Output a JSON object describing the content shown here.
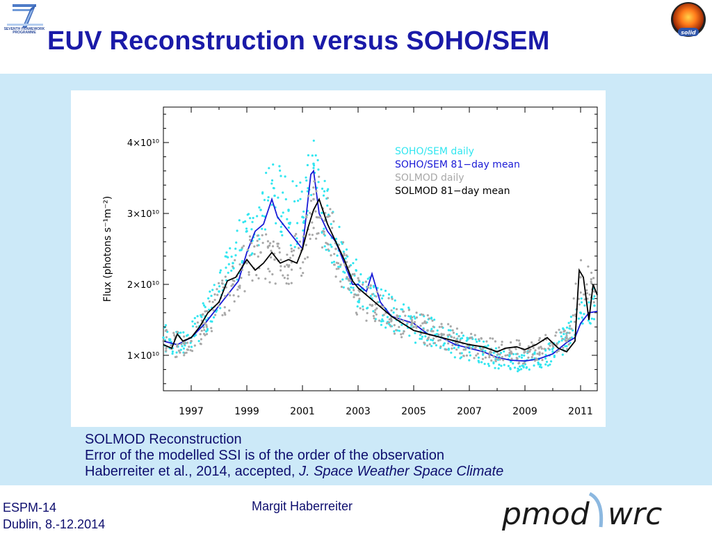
{
  "slide": {
    "title": "EUV Reconstruction versus SOHO/SEM",
    "fp7_logo_text": "SEVENTH FRAMEWORK PROGRAMME",
    "solid_logo_text": "solid",
    "caption": {
      "line1": "SOLMOD Reconstruction",
      "line2": "Error of the modelled SSI is of the order of the observation",
      "line3_plain": "Haberreiter et al., 2014, accepted, ",
      "line3_italic": "J. Space Weather Space Climate"
    },
    "footer": {
      "conference": "ESPM-14",
      "place_date": "Dublin, 8.-12.2014",
      "author": "Margit Haberreiter",
      "logo_left": "pmod",
      "logo_right": "wrc"
    },
    "colors": {
      "title": "#1a1aa8",
      "background": "#cce9f8",
      "soho_daily": "#33e6f0",
      "soho_mean": "#1a1ad6",
      "solmod_daily": "#a8a8a8",
      "solmod_mean": "#000000"
    }
  },
  "chart_data": {
    "type": "line",
    "title": "",
    "xlabel": "",
    "ylabel": "Flux (photons s⁻¹m⁻²)",
    "xlim": [
      1996.0,
      2011.6
    ],
    "ylim": [
      5000000000.0,
      45000000000.0
    ],
    "x_ticks": [
      1997,
      1999,
      2001,
      2003,
      2005,
      2007,
      2009,
      2011
    ],
    "y_ticks": [
      {
        "value": 10000000000.0,
        "label": "1×10¹⁰"
      },
      {
        "value": 20000000000.0,
        "label": "2×10¹⁰"
      },
      {
        "value": 30000000000.0,
        "label": "3×10¹⁰"
      },
      {
        "value": 40000000000.0,
        "label": "4×10¹⁰"
      }
    ],
    "legend_position": "top-right",
    "series": [
      {
        "name": "SOHO/SEM daily",
        "style": "dots",
        "color": "#33e6f0",
        "x": [
          1996.0,
          1996.5,
          1997.0,
          1997.5,
          1998.0,
          1998.5,
          1999.0,
          1999.5,
          2000.0,
          2000.5,
          2001.0,
          2001.4,
          2001.8,
          2002.2,
          2002.6,
          2003.0,
          2003.5,
          2004.0,
          2004.5,
          2005.0,
          2005.5,
          2006.0,
          2006.5,
          2007.0,
          2007.5,
          2008.0,
          2008.5,
          2009.0,
          2009.5,
          2010.0,
          2010.5,
          2011.0,
          2011.5
        ],
        "y": [
          12500000000.0,
          11500000000.0,
          12500000000.0,
          15500000000.0,
          19000000000.0,
          23000000000.0,
          27500000000.0,
          30500000000.0,
          32500000000.0,
          30500000000.0,
          29500000000.0,
          37000000000.0,
          30000000000.0,
          26000000000.0,
          22000000000.0,
          20000000000.0,
          18000000000.0,
          16500000000.0,
          15500000000.0,
          14000000000.0,
          13500000000.0,
          12500000000.0,
          11500000000.0,
          11000000000.0,
          10500000000.0,
          9500000000.0,
          9200000000.0,
          9200000000.0,
          9500000000.0,
          10500000000.0,
          12500000000.0,
          16000000000.0,
          17000000000.0
        ]
      },
      {
        "name": "SOHO/SEM 81−day mean",
        "style": "line",
        "color": "#1a1ad6",
        "x": [
          1996.0,
          1996.5,
          1997.0,
          1997.5,
          1998.0,
          1998.3,
          1998.7,
          1999.0,
          1999.3,
          1999.6,
          1999.9,
          2000.1,
          2000.4,
          2000.7,
          2001.0,
          2001.3,
          2001.4,
          2001.6,
          2001.9,
          2002.2,
          2002.5,
          2002.8,
          2003.0,
          2003.3,
          2003.5,
          2003.8,
          2004.2,
          2004.6,
          2005.0,
          2005.5,
          2006.0,
          2006.5,
          2007.0,
          2007.5,
          2008.0,
          2008.5,
          2009.0,
          2009.5,
          2010.0,
          2010.5,
          2010.8,
          2011.0,
          2011.3,
          2011.6
        ],
        "y": [
          12000000000.0,
          11500000000.0,
          12500000000.0,
          14500000000.0,
          17000000000.0,
          18500000000.0,
          20500000000.0,
          24500000000.0,
          27500000000.0,
          28500000000.0,
          32000000000.0,
          29500000000.0,
          28000000000.0,
          26500000000.0,
          25000000000.0,
          35500000000.0,
          36000000000.0,
          30000000000.0,
          27500000000.0,
          26000000000.0,
          23000000000.0,
          20000000000.0,
          20000000000.0,
          19000000000.0,
          21500000000.0,
          17500000000.0,
          15500000000.0,
          15000000000.0,
          14500000000.0,
          13000000000.0,
          12500000000.0,
          11500000000.0,
          11000000000.0,
          10500000000.0,
          9700000000.0,
          9300000000.0,
          9200000000.0,
          9500000000.0,
          10200000000.0,
          11800000000.0,
          12500000000.0,
          14500000000.0,
          16000000000.0,
          16200000000.0
        ]
      },
      {
        "name": "SOLMOD daily",
        "style": "dots",
        "color": "#a8a8a8",
        "x": [
          1996.0,
          1996.5,
          1997.0,
          1997.5,
          1998.0,
          1998.5,
          1999.0,
          1999.5,
          2000.0,
          2000.5,
          2001.0,
          2001.4,
          2001.8,
          2002.2,
          2002.6,
          2003.0,
          2003.5,
          2004.0,
          2004.5,
          2005.0,
          2005.5,
          2006.0,
          2006.5,
          2007.0,
          2007.5,
          2008.0,
          2008.5,
          2009.0,
          2009.5,
          2010.0,
          2010.5,
          2011.0,
          2011.5
        ],
        "y": [
          12000000000.0,
          11500000000.0,
          12000000000.0,
          14500000000.0,
          17500000000.0,
          20000000000.0,
          23000000000.0,
          24500000000.0,
          23500000000.0,
          22500000000.0,
          25000000000.0,
          32000000000.0,
          29000000000.0,
          25000000000.0,
          21000000000.0,
          18500000000.0,
          17000000000.0,
          16000000000.0,
          15000000000.0,
          14000000000.0,
          13500000000.0,
          13000000000.0,
          12000000000.0,
          11500000000.0,
          11000000000.0,
          10500000000.0,
          10500000000.0,
          10500000000.0,
          11000000000.0,
          11500000000.0,
          12000000000.0,
          21000000000.0,
          19000000000.0
        ]
      },
      {
        "name": "SOLMOD 81−day mean",
        "style": "line",
        "color": "#000000",
        "x": [
          1996.0,
          1996.3,
          1996.5,
          1996.7,
          1997.0,
          1997.3,
          1997.6,
          1998.0,
          1998.3,
          1998.6,
          1999.0,
          1999.3,
          1999.6,
          1999.9,
          2000.2,
          2000.5,
          2000.8,
          2001.0,
          2001.2,
          2001.4,
          2001.6,
          2001.9,
          2002.2,
          2002.5,
          2002.8,
          2003.0,
          2003.3,
          2003.6,
          2003.9,
          2004.2,
          2004.6,
          2005.0,
          2005.5,
          2006.0,
          2006.5,
          2007.0,
          2007.5,
          2008.0,
          2008.3,
          2008.7,
          2009.0,
          2009.4,
          2009.8,
          2010.2,
          2010.5,
          2010.8,
          2010.95,
          2011.1,
          2011.3,
          2011.45,
          2011.6
        ],
        "y": [
          11500000000.0,
          11000000000.0,
          13000000000.0,
          12000000000.0,
          12500000000.0,
          14000000000.0,
          16000000000.0,
          17500000000.0,
          20500000000.0,
          21000000000.0,
          23500000000.0,
          22000000000.0,
          23000000000.0,
          24500000000.0,
          23000000000.0,
          23500000000.0,
          23000000000.0,
          25000000000.0,
          28000000000.0,
          30500000000.0,
          32000000000.0,
          28500000000.0,
          26000000000.0,
          23500000000.0,
          20500000000.0,
          19500000000.0,
          18500000000.0,
          17500000000.0,
          16500000000.0,
          15500000000.0,
          14500000000.0,
          13500000000.0,
          13000000000.0,
          12500000000.0,
          12000000000.0,
          11500000000.0,
          11200000000.0,
          10500000000.0,
          11000000000.0,
          11200000000.0,
          10800000000.0,
          11500000000.0,
          12500000000.0,
          11000000000.0,
          10500000000.0,
          12000000000.0,
          22000000000.0,
          21000000000.0,
          15000000000.0,
          20000000000.0,
          18500000000.0
        ]
      }
    ]
  }
}
